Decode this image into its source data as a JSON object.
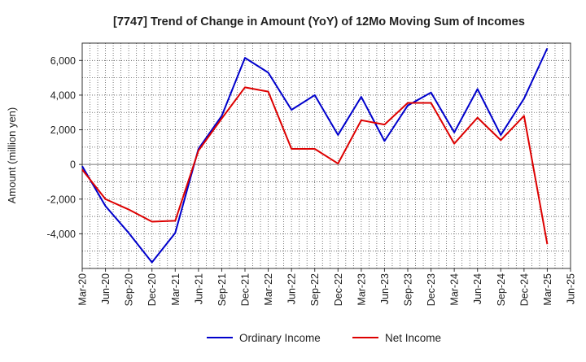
{
  "chart_data": {
    "type": "line",
    "title": "[7747]  Trend of Change in Amount (YoY) of 12Mo Moving Sum of Incomes",
    "xlabel": "",
    "ylabel": "Amount (million yen)",
    "ylim": [
      -6000,
      7000
    ],
    "yticks": [
      -4000,
      -2000,
      0,
      2000,
      4000,
      6000
    ],
    "ytick_labels": [
      "-4,000",
      "-2,000",
      "0",
      "2,000",
      "4,000",
      "6,000"
    ],
    "categories": [
      "Mar-20",
      "Jun-20",
      "Sep-20",
      "Dec-20",
      "Mar-21",
      "Jun-21",
      "Sep-21",
      "Dec-21",
      "Mar-22",
      "Jun-22",
      "Sep-22",
      "Dec-22",
      "Mar-23",
      "Jun-23",
      "Sep-23",
      "Dec-23",
      "Mar-24",
      "Jun-24",
      "Sep-24",
      "Dec-24",
      "Mar-25",
      "Jun-25"
    ],
    "grid": true,
    "legend_position": "bottom",
    "series": [
      {
        "name": "Ordinary Income",
        "color": "#0000cc",
        "values": [
          -100,
          -2400,
          -3950,
          -5650,
          -3950,
          900,
          2800,
          6150,
          5300,
          3150,
          4000,
          1700,
          3900,
          1350,
          3400,
          4150,
          1850,
          4350,
          1700,
          3800,
          6700,
          null
        ]
      },
      {
        "name": "Net Income",
        "color": "#dd0000",
        "values": [
          -300,
          -2000,
          -2600,
          -3300,
          -3250,
          800,
          2650,
          4450,
          4200,
          900,
          900,
          50,
          2550,
          2300,
          3550,
          3550,
          1200,
          2700,
          1400,
          2800,
          -4600,
          null
        ]
      }
    ]
  }
}
